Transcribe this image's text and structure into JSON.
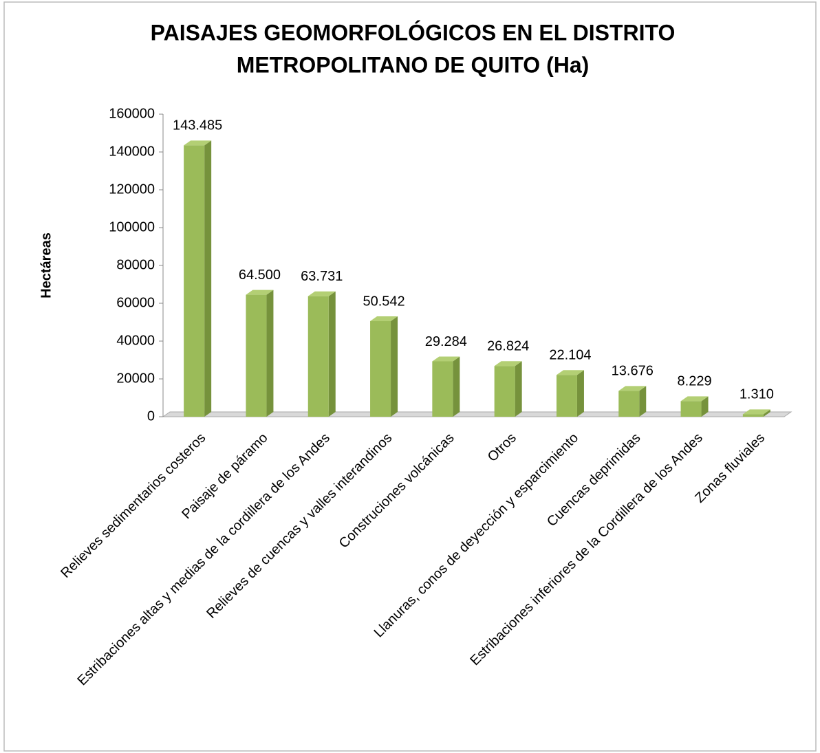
{
  "chart_data": {
    "type": "bar",
    "title": [
      "PAISAJES GEOMORFOLÓGICOS EN EL DISTRITO",
      "METROPOLITANO DE QUITO (Ha)"
    ],
    "y_label": "Hectáreas",
    "categories": [
      "Relieves sedimentarios costeros",
      "Paisaje de páramo",
      "Estribaciones altas y medias de la cordillera de los Andes",
      "Relieves de cuencas y valles interandinos",
      "Construciones volcánicas",
      "Otros",
      "Llanuras, conos de deyección y esparcimiento",
      "Cuencas deprimidas",
      "Estribaciones inferiores de la Cordillera de los Andes",
      "Zonas fluviales"
    ],
    "values": [
      143485,
      64500,
      63731,
      50542,
      29284,
      26824,
      22104,
      13676,
      8229,
      1310
    ],
    "value_labels": [
      "143.485",
      "64.500",
      "63.731",
      "50.542",
      "29.284",
      "26.824",
      "22.104",
      "13.676",
      "8.229",
      "1.310"
    ],
    "color": "#9bbb59",
    "ylim": [
      0,
      160000
    ],
    "yticks": [
      0,
      20000,
      40000,
      60000,
      80000,
      100000,
      120000,
      140000,
      160000
    ]
  }
}
